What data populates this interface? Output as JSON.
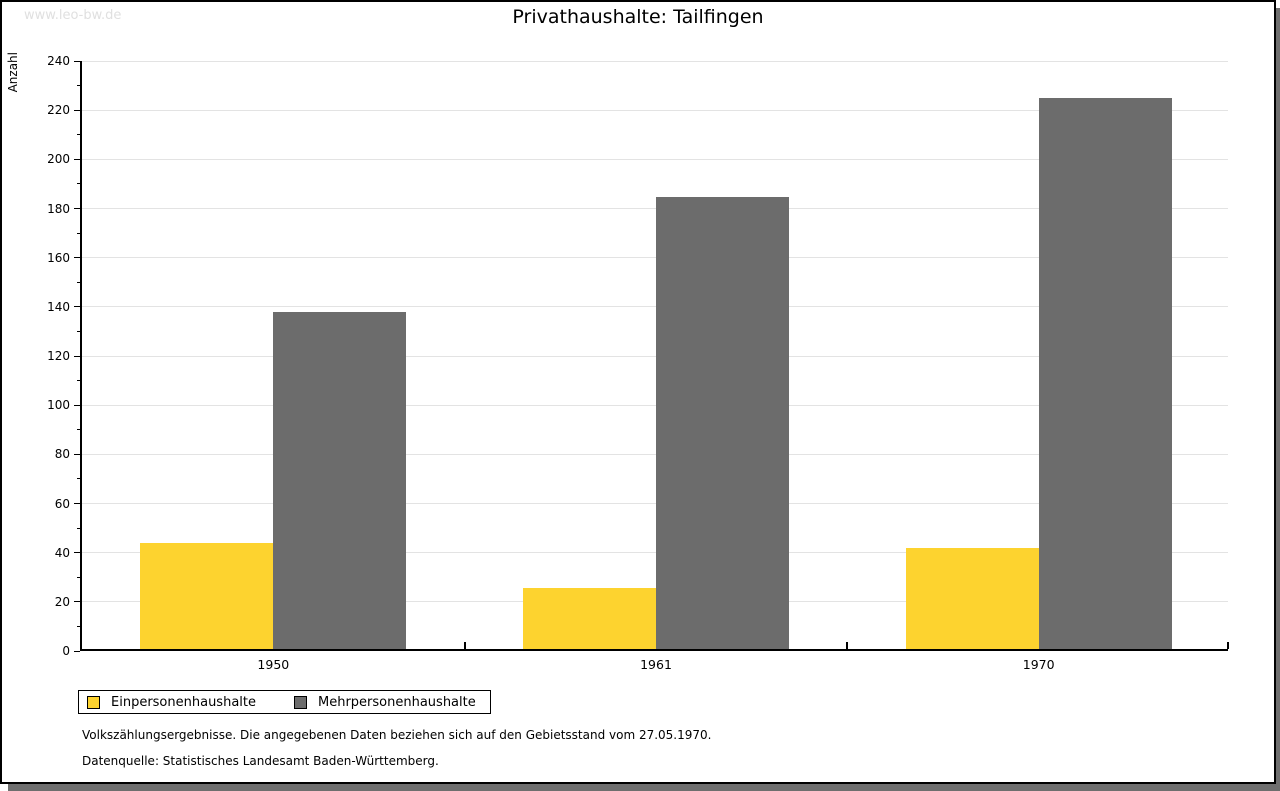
{
  "watermark": "www.leo-bw.de",
  "title": "Privathaushalte: Tailfingen",
  "chart_data": {
    "type": "bar",
    "title": "Privathaushalte: Tailfingen",
    "xlabel": "",
    "ylabel": "Anzahl",
    "categories": [
      "1950",
      "1961",
      "1970"
    ],
    "series": [
      {
        "name": "Einpersonenhaushalte",
        "color": "#FDD32F",
        "values": [
          43,
          25,
          41
        ]
      },
      {
        "name": "Mehrpersonenhaushalte",
        "color": "#6C6C6C",
        "values": [
          137,
          184,
          224
        ]
      }
    ],
    "ylim": [
      0,
      240
    ],
    "ytick_step": 20,
    "yminor_step": 10,
    "grid": "horizontal-light-gray",
    "legend_position": "bottom-left"
  },
  "footer": {
    "line1": "Volkszählungsergebnisse. Die angegebenen Daten beziehen sich auf den Gebietsstand vom 27.05.1970.",
    "line2": "Datenquelle: Statistisches Landesamt Baden-Württemberg."
  }
}
